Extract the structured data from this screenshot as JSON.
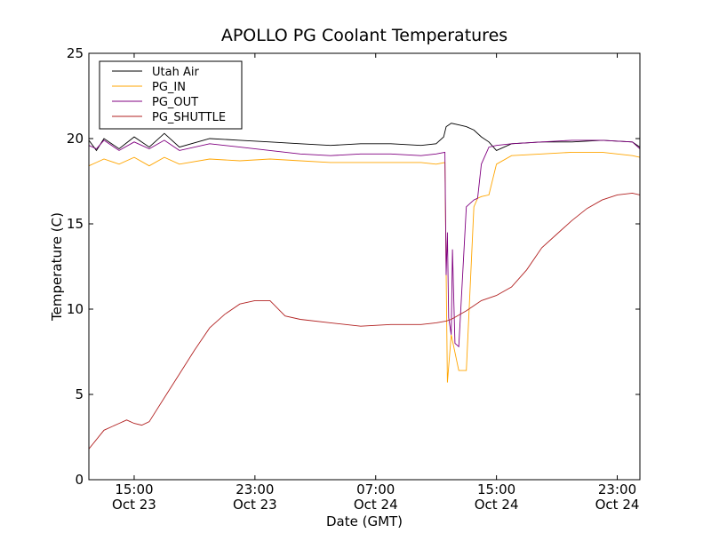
{
  "chart_data": {
    "type": "line",
    "title": "APOLLO PG Coolant Temperatures",
    "xlabel": "Date (GMT)",
    "ylabel": "Temperature (C)",
    "xlim": [
      "2012-10-23T12:00",
      "2012-10-25T00:30"
    ],
    "ylim": [
      0,
      25
    ],
    "yticks": [
      0,
      5,
      10,
      15,
      20,
      25
    ],
    "xticks": [
      {
        "t": "2012-10-23T15:00",
        "time": "15:00",
        "date": "Oct 23"
      },
      {
        "t": "2012-10-23T23:00",
        "time": "23:00",
        "date": "Oct 23"
      },
      {
        "t": "2012-10-24T07:00",
        "time": "07:00",
        "date": "Oct 24"
      },
      {
        "t": "2012-10-24T15:00",
        "time": "15:00",
        "date": "Oct 24"
      },
      {
        "t": "2012-10-24T23:00",
        "time": "23:00",
        "date": "Oct 24"
      }
    ],
    "legend_position": "top-left",
    "grid": false,
    "series": [
      {
        "name": "Utah Air",
        "color": "#000000",
        "x": [
          "2012-10-23T12:00",
          "2012-10-23T12:30",
          "2012-10-23T13:00",
          "2012-10-23T14:00",
          "2012-10-23T15:00",
          "2012-10-23T16:00",
          "2012-10-23T17:00",
          "2012-10-23T18:00",
          "2012-10-23T20:00",
          "2012-10-23T22:00",
          "2012-10-24T00:00",
          "2012-10-24T02:00",
          "2012-10-24T04:00",
          "2012-10-24T06:00",
          "2012-10-24T08:00",
          "2012-10-24T10:00",
          "2012-10-24T11:00",
          "2012-10-24T11:30",
          "2012-10-24T11:40",
          "2012-10-24T12:00",
          "2012-10-24T12:30",
          "2012-10-24T13:00",
          "2012-10-24T13:30",
          "2012-10-24T14:00",
          "2012-10-24T14:30",
          "2012-10-24T15:00",
          "2012-10-24T16:00",
          "2012-10-24T18:00",
          "2012-10-24T20:00",
          "2012-10-24T22:00",
          "2012-10-25T00:00",
          "2012-10-25T00:30"
        ],
        "y": [
          19.9,
          19.3,
          20.0,
          19.4,
          20.1,
          19.5,
          20.3,
          19.5,
          20.0,
          19.9,
          19.8,
          19.7,
          19.6,
          19.7,
          19.7,
          19.6,
          19.7,
          20.1,
          20.7,
          20.9,
          20.8,
          20.7,
          20.5,
          20.1,
          19.8,
          19.3,
          19.7,
          19.8,
          19.8,
          19.9,
          19.8,
          19.5
        ]
      },
      {
        "name": "PG_IN",
        "color": "#ffa500",
        "x": [
          "2012-10-23T12:00",
          "2012-10-23T12:30",
          "2012-10-23T13:00",
          "2012-10-23T14:00",
          "2012-10-23T15:00",
          "2012-10-23T16:00",
          "2012-10-23T17:00",
          "2012-10-23T18:00",
          "2012-10-23T20:00",
          "2012-10-23T22:00",
          "2012-10-24T00:00",
          "2012-10-24T02:00",
          "2012-10-24T04:00",
          "2012-10-24T06:00",
          "2012-10-24T08:00",
          "2012-10-24T10:00",
          "2012-10-24T11:00",
          "2012-10-24T11:35",
          "2012-10-24T11:45",
          "2012-10-24T12:00",
          "2012-10-24T12:30",
          "2012-10-24T13:00",
          "2012-10-24T13:30",
          "2012-10-24T13:45",
          "2012-10-24T14:00",
          "2012-10-24T14:30",
          "2012-10-24T15:00",
          "2012-10-24T16:00",
          "2012-10-24T18:00",
          "2012-10-24T20:00",
          "2012-10-24T22:00",
          "2012-10-25T00:00",
          "2012-10-25T00:30"
        ],
        "y": [
          18.4,
          18.6,
          18.8,
          18.5,
          18.9,
          18.4,
          18.9,
          18.5,
          18.8,
          18.7,
          18.8,
          18.7,
          18.6,
          18.6,
          18.6,
          18.6,
          18.5,
          18.6,
          5.7,
          8.5,
          6.4,
          6.4,
          16.0,
          16.5,
          16.6,
          16.7,
          18.5,
          19.0,
          19.1,
          19.2,
          19.2,
          19.0,
          18.9
        ]
      },
      {
        "name": "PG_OUT",
        "color": "#800080",
        "x": [
          "2012-10-23T12:00",
          "2012-10-23T12:30",
          "2012-10-23T13:00",
          "2012-10-23T14:00",
          "2012-10-23T15:00",
          "2012-10-23T16:00",
          "2012-10-23T17:00",
          "2012-10-23T18:00",
          "2012-10-23T20:00",
          "2012-10-23T22:00",
          "2012-10-24T00:00",
          "2012-10-24T02:00",
          "2012-10-24T04:00",
          "2012-10-24T06:00",
          "2012-10-24T08:00",
          "2012-10-24T10:00",
          "2012-10-24T11:00",
          "2012-10-24T11:35",
          "2012-10-24T11:40",
          "2012-10-24T11:45",
          "2012-10-24T11:50",
          "2012-10-24T12:00",
          "2012-10-24T12:05",
          "2012-10-24T12:15",
          "2012-10-24T12:30",
          "2012-10-24T13:00",
          "2012-10-24T13:30",
          "2012-10-24T13:45",
          "2012-10-24T14:00",
          "2012-10-24T14:30",
          "2012-10-24T15:00",
          "2012-10-24T16:00",
          "2012-10-24T18:00",
          "2012-10-24T20:00",
          "2012-10-24T22:00",
          "2012-10-25T00:00",
          "2012-10-25T00:30"
        ],
        "y": [
          19.6,
          19.4,
          19.9,
          19.3,
          19.8,
          19.4,
          19.9,
          19.3,
          19.7,
          19.5,
          19.3,
          19.1,
          19.0,
          19.1,
          19.1,
          19.0,
          19.1,
          19.2,
          12.0,
          14.5,
          9.5,
          8.5,
          13.5,
          8.0,
          7.8,
          16.0,
          16.4,
          16.5,
          18.5,
          19.5,
          19.6,
          19.7,
          19.8,
          19.9,
          19.9,
          19.8,
          19.4
        ]
      },
      {
        "name": "PG_SHUTTLE",
        "color": "#b22222",
        "x": [
          "2012-10-23T12:00",
          "2012-10-23T13:00",
          "2012-10-23T14:00",
          "2012-10-23T14:30",
          "2012-10-23T15:00",
          "2012-10-23T15:30",
          "2012-10-23T16:00",
          "2012-10-23T17:00",
          "2012-10-23T18:00",
          "2012-10-23T19:00",
          "2012-10-23T20:00",
          "2012-10-23T21:00",
          "2012-10-23T22:00",
          "2012-10-23T23:00",
          "2012-10-24T00:00",
          "2012-10-24T01:00",
          "2012-10-24T02:00",
          "2012-10-24T04:00",
          "2012-10-24T06:00",
          "2012-10-24T08:00",
          "2012-10-24T10:00",
          "2012-10-24T11:00",
          "2012-10-24T11:40",
          "2012-10-24T12:00",
          "2012-10-24T13:00",
          "2012-10-24T14:00",
          "2012-10-24T15:00",
          "2012-10-24T16:00",
          "2012-10-24T17:00",
          "2012-10-24T18:00",
          "2012-10-24T19:00",
          "2012-10-24T20:00",
          "2012-10-24T21:00",
          "2012-10-24T22:00",
          "2012-10-24T23:00",
          "2012-10-25T00:00",
          "2012-10-25T00:30"
        ],
        "y": [
          1.8,
          2.9,
          3.3,
          3.5,
          3.3,
          3.2,
          3.4,
          4.8,
          6.2,
          7.6,
          8.9,
          9.7,
          10.3,
          10.5,
          10.5,
          9.6,
          9.4,
          9.2,
          9.0,
          9.1,
          9.1,
          9.2,
          9.3,
          9.4,
          9.9,
          10.5,
          10.8,
          11.3,
          12.3,
          13.6,
          14.4,
          15.2,
          15.9,
          16.4,
          16.7,
          16.8,
          16.7
        ]
      }
    ]
  }
}
